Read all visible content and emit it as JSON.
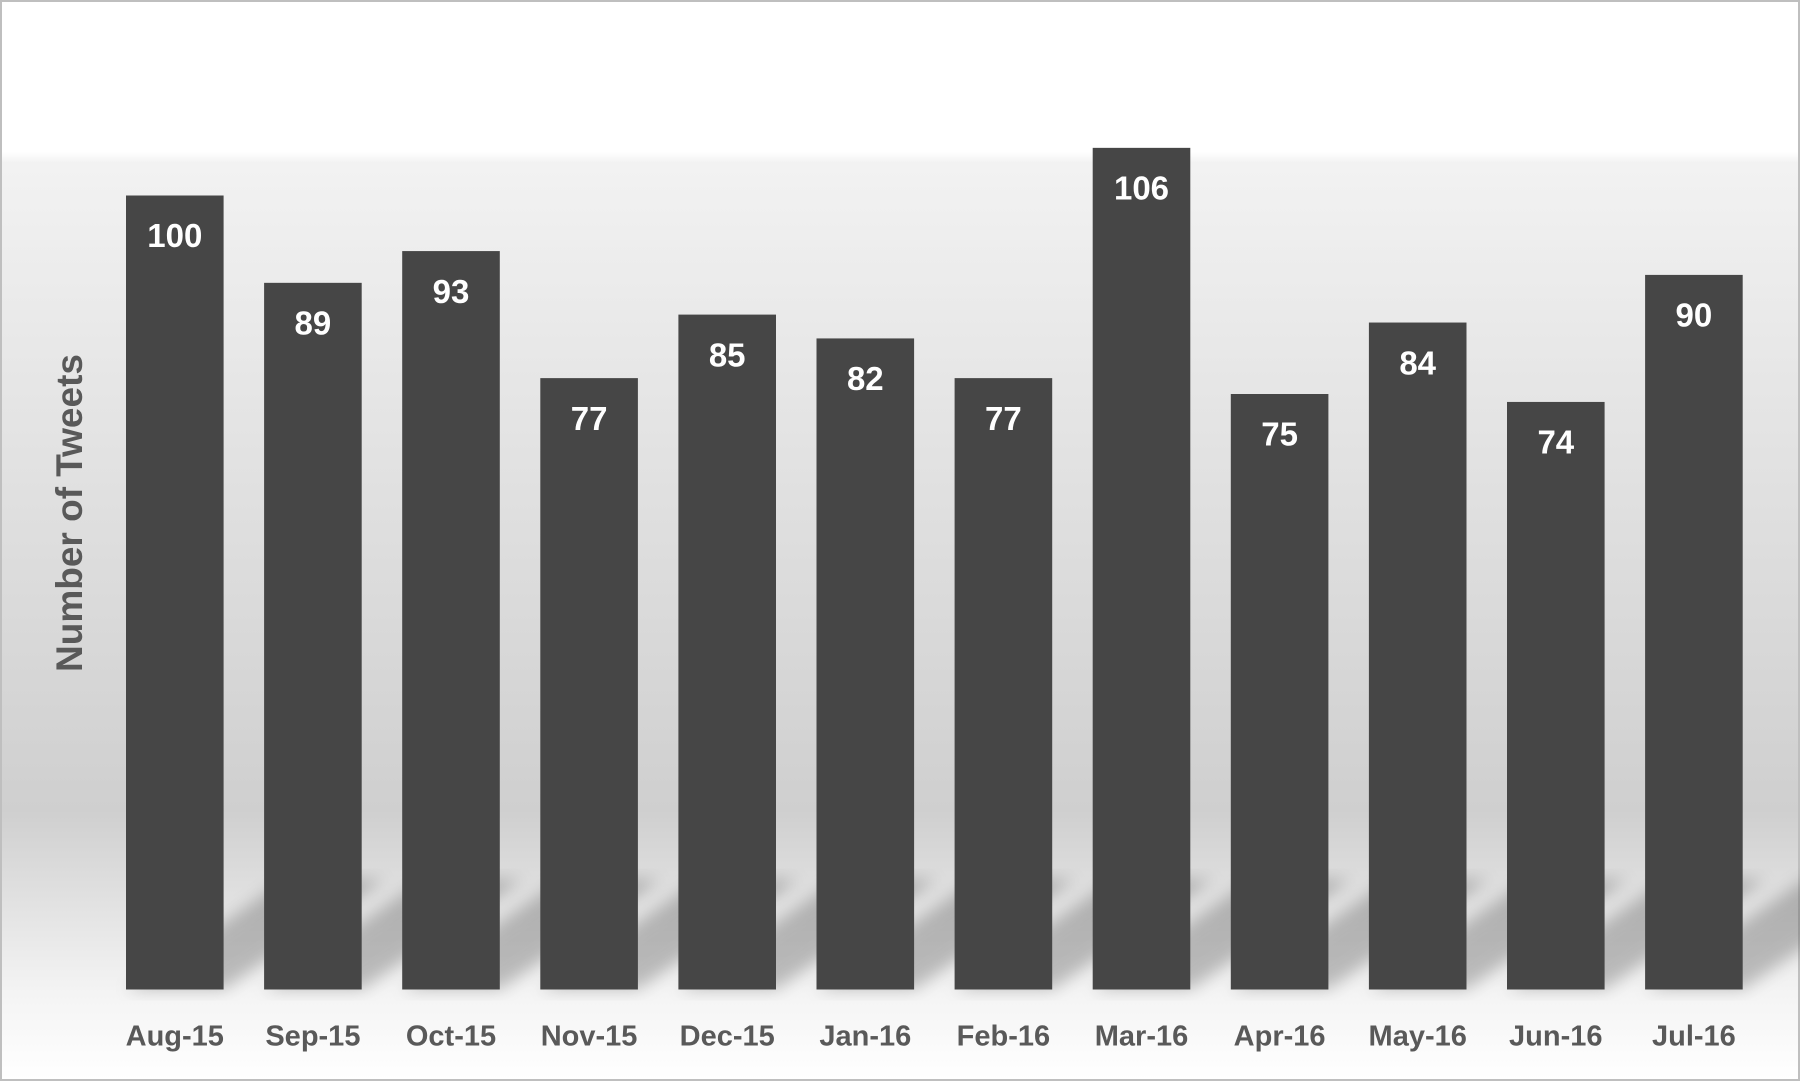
{
  "chart_data": {
    "type": "bar",
    "y_label": "Number of Tweets",
    "categories": [
      "Aug-15",
      "Sep-15",
      "Oct-15",
      "Nov-15",
      "Dec-15",
      "Jan-16",
      "Feb-16",
      "Mar-16",
      "Apr-16",
      "May-16",
      "Jun-16",
      "Jul-16"
    ],
    "values": [
      100,
      89,
      93,
      77,
      85,
      82,
      77,
      106,
      75,
      84,
      74,
      90
    ],
    "color": "#464646"
  }
}
